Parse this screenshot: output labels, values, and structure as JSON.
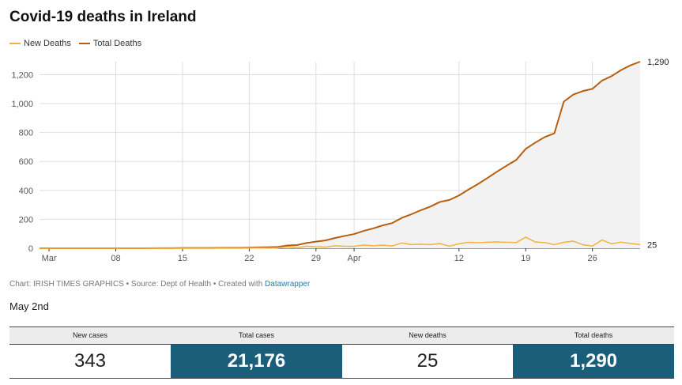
{
  "title": "Covid-19 deaths in Ireland",
  "legend": [
    {
      "label": "New Deaths",
      "color": "#f3b23a"
    },
    {
      "label": "Total Deaths",
      "color": "#b75e0f"
    }
  ],
  "source": {
    "prefix": "Chart: IRISH TIMES GRAPHICS • Source: Dept of Health • Created with ",
    "link": "Datawrapper"
  },
  "date_label": "May 2nd",
  "stats": [
    {
      "label": "New cases",
      "value": "343"
    },
    {
      "label": "Total cases",
      "value": "21,176"
    },
    {
      "label": "New deaths",
      "value": "25"
    },
    {
      "label": "Total deaths",
      "value": "1,290"
    }
  ],
  "chart_data": {
    "type": "line",
    "title": "Covid-19 deaths in Ireland",
    "xlabel": "",
    "ylabel": "",
    "x_ticks": [
      "Mar",
      "08",
      "15",
      "22",
      "29",
      "Apr",
      "12",
      "19",
      "26"
    ],
    "y_ticks": [
      "0",
      "200",
      "400",
      "600",
      "800",
      "1,000",
      "1,200"
    ],
    "ylim": [
      0,
      1290
    ],
    "grid": true,
    "legend_position": "top-left",
    "area_fill": "#f2f2f2",
    "end_labels": [
      "1,290",
      "25"
    ],
    "x": [
      "Feb 29",
      "Mar 1",
      "Mar 2",
      "Mar 3",
      "Mar 4",
      "Mar 5",
      "Mar 6",
      "Mar 7",
      "Mar 8",
      "Mar 9",
      "Mar 10",
      "Mar 11",
      "Mar 12",
      "Mar 13",
      "Mar 14",
      "Mar 15",
      "Mar 16",
      "Mar 17",
      "Mar 18",
      "Mar 19",
      "Mar 20",
      "Mar 21",
      "Mar 22",
      "Mar 23",
      "Mar 24",
      "Mar 25",
      "Mar 26",
      "Mar 27",
      "Mar 28",
      "Mar 29",
      "Mar 30",
      "Mar 31",
      "Apr 1",
      "Apr 2",
      "Apr 3",
      "Apr 4",
      "Apr 5",
      "Apr 6",
      "Apr 7",
      "Apr 8",
      "Apr 9",
      "Apr 10",
      "Apr 11",
      "Apr 12",
      "Apr 13",
      "Apr 14",
      "Apr 15",
      "Apr 16",
      "Apr 17",
      "Apr 18",
      "Apr 19",
      "Apr 20",
      "Apr 21",
      "Apr 22",
      "Apr 23",
      "Apr 24",
      "Apr 25",
      "Apr 26",
      "Apr 27",
      "Apr 28",
      "Apr 29",
      "Apr 30",
      "May 1",
      "May 2"
    ],
    "series": [
      {
        "name": "Total Deaths",
        "color": "#b75e0f",
        "values": [
          0,
          0,
          0,
          0,
          0,
          0,
          0,
          0,
          0,
          0,
          0,
          0,
          1,
          1,
          1,
          2,
          2,
          2,
          2,
          3,
          3,
          3,
          4,
          6,
          7,
          9,
          19,
          22,
          36,
          46,
          54,
          71,
          85,
          98,
          120,
          137,
          158,
          174,
          210,
          235,
          263,
          288,
          320,
          334,
          365,
          406,
          444,
          486,
          530,
          571,
          610,
          687,
          730,
          769,
          794,
          1014,
          1063,
          1087,
          1102,
          1159,
          1190,
          1232,
          1265,
          1290
        ]
      },
      {
        "name": "New Deaths",
        "color": "#f3b23a",
        "values": [
          0,
          0,
          0,
          0,
          0,
          0,
          0,
          0,
          0,
          0,
          0,
          0,
          1,
          0,
          0,
          1,
          0,
          0,
          0,
          1,
          0,
          0,
          1,
          2,
          1,
          2,
          10,
          3,
          14,
          10,
          8,
          17,
          14,
          13,
          22,
          17,
          21,
          16,
          36,
          25,
          28,
          25,
          32,
          14,
          31,
          41,
          38,
          42,
          44,
          41,
          39,
          77,
          43,
          39,
          25,
          41,
          49,
          24,
          15,
          57,
          31,
          42,
          33,
          25
        ]
      }
    ]
  }
}
